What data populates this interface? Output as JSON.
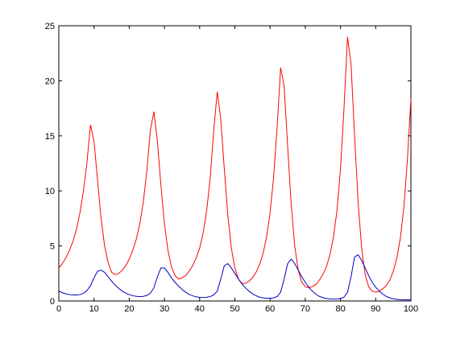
{
  "chart_data": {
    "type": "line",
    "x": [
      0,
      1,
      2,
      3,
      4,
      5,
      6,
      7,
      8,
      9,
      10,
      11,
      12,
      13,
      14,
      15,
      16,
      17,
      18,
      19,
      20,
      21,
      22,
      23,
      24,
      25,
      26,
      27,
      28,
      29,
      30,
      31,
      32,
      33,
      34,
      35,
      36,
      37,
      38,
      39,
      40,
      41,
      42,
      43,
      44,
      45,
      46,
      47,
      48,
      49,
      50,
      51,
      52,
      53,
      54,
      55,
      56,
      57,
      58,
      59,
      60,
      61,
      62,
      63,
      64,
      65,
      66,
      67,
      68,
      69,
      70,
      71,
      72,
      73,
      74,
      75,
      76,
      77,
      78,
      79,
      80,
      81,
      82,
      83,
      84,
      85,
      86,
      87,
      88,
      89,
      90,
      91,
      92,
      93,
      94,
      95,
      96,
      97,
      98,
      99,
      100
    ],
    "series": [
      {
        "color": "#ff0000",
        "values": [
          3.0,
          3.4,
          3.9,
          4.6,
          5.4,
          6.5,
          8.0,
          10.0,
          12.6,
          16.0,
          14.5,
          11.0,
          7.5,
          5.0,
          3.5,
          2.6,
          2.4,
          2.5,
          2.8,
          3.2,
          3.8,
          4.6,
          5.6,
          7.0,
          9.0,
          11.8,
          15.5,
          17.2,
          14.5,
          10.5,
          7.0,
          4.6,
          3.1,
          2.3,
          2.0,
          2.1,
          2.3,
          2.7,
          3.2,
          3.9,
          4.8,
          6.2,
          8.2,
          11.2,
          15.5,
          19.0,
          16.5,
          12.0,
          7.8,
          4.8,
          3.0,
          2.0,
          1.6,
          1.6,
          1.8,
          2.1,
          2.6,
          3.3,
          4.3,
          5.8,
          8.0,
          11.2,
          15.8,
          21.2,
          19.5,
          14.0,
          8.8,
          5.0,
          2.8,
          1.7,
          1.3,
          1.2,
          1.3,
          1.5,
          1.9,
          2.4,
          3.1,
          4.2,
          5.8,
          8.2,
          12.0,
          17.5,
          24.0,
          21.5,
          15.0,
          9.0,
          4.8,
          2.4,
          1.3,
          0.9,
          0.8,
          0.9,
          1.1,
          1.4,
          1.9,
          2.7,
          3.9,
          5.7,
          8.5,
          12.8,
          18.4
        ]
      },
      {
        "color": "#0000c0",
        "values": [
          0.9,
          0.75,
          0.65,
          0.58,
          0.55,
          0.55,
          0.58,
          0.7,
          0.95,
          1.4,
          2.1,
          2.7,
          2.8,
          2.6,
          2.2,
          1.8,
          1.45,
          1.15,
          0.9,
          0.72,
          0.58,
          0.48,
          0.42,
          0.4,
          0.42,
          0.5,
          0.7,
          1.2,
          2.2,
          3.0,
          3.0,
          2.6,
          2.1,
          1.7,
          1.35,
          1.05,
          0.8,
          0.6,
          0.47,
          0.38,
          0.33,
          0.32,
          0.34,
          0.4,
          0.55,
          0.9,
          2.0,
          3.2,
          3.4,
          3.0,
          2.5,
          2.0,
          1.55,
          1.2,
          0.9,
          0.65,
          0.48,
          0.35,
          0.28,
          0.25,
          0.25,
          0.28,
          0.4,
          0.8,
          2.0,
          3.4,
          3.8,
          3.4,
          2.8,
          2.2,
          1.7,
          1.25,
          0.9,
          0.62,
          0.42,
          0.3,
          0.22,
          0.18,
          0.17,
          0.18,
          0.22,
          0.35,
          0.8,
          2.2,
          4.0,
          4.2,
          3.7,
          3.0,
          2.3,
          1.7,
          1.25,
          0.9,
          0.62,
          0.42,
          0.28,
          0.2,
          0.15,
          0.12,
          0.11,
          0.1,
          0.1
        ]
      }
    ],
    "xlim": [
      0,
      100
    ],
    "xticks": [
      0,
      10,
      20,
      30,
      40,
      50,
      60,
      70,
      80,
      90,
      100
    ],
    "ylim": [
      0,
      25
    ],
    "yticks": [
      0,
      5,
      10,
      15,
      20,
      25
    ]
  }
}
